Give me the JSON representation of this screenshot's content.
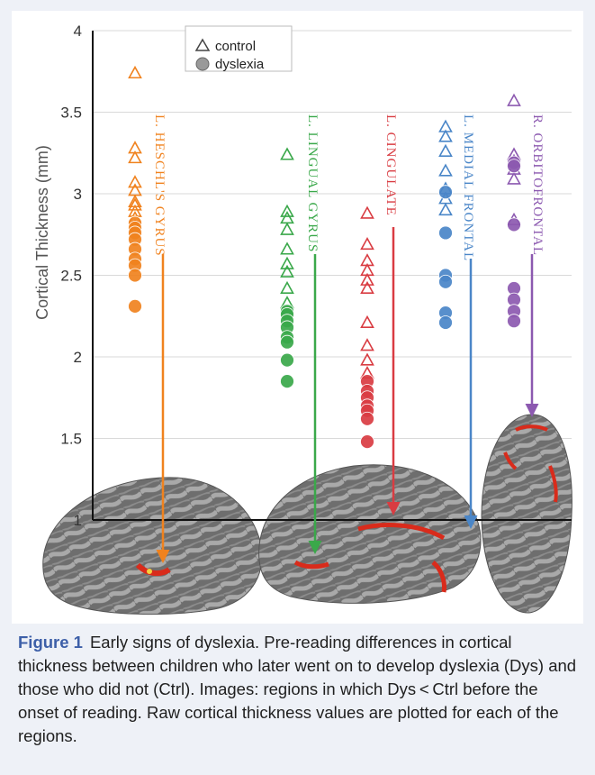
{
  "chart_data": {
    "type": "scatter",
    "ylabel": "Cortical Thickness (mm)",
    "ylim": [
      1,
      4
    ],
    "yticks": [
      "1",
      "1.5",
      "2",
      "2.5",
      "3",
      "3.5",
      "4"
    ],
    "legend": {
      "position": "top-left",
      "control_label": "control",
      "dyslexia_label": "dyslexia"
    },
    "regions": [
      {
        "name": "L. Heschl's gyrus",
        "label_text": "L. HESCHL'S GYRUS",
        "color": "#f0821e",
        "control": [
          3.74,
          3.28,
          3.22,
          3.07,
          3.02,
          2.95,
          2.93,
          2.89,
          2.85,
          2.8
        ],
        "dyslexia": [
          2.82,
          2.79,
          2.76,
          2.72,
          2.66,
          2.6,
          2.56,
          2.5,
          2.31
        ]
      },
      {
        "name": "L. Lingual gyrus",
        "label_text": "L. LINGUAL GYRUS",
        "color": "#3aa84a",
        "control": [
          3.24,
          2.89,
          2.85,
          2.78,
          2.66,
          2.57,
          2.52,
          2.42,
          2.33,
          2.22
        ],
        "dyslexia": [
          2.28,
          2.26,
          2.22,
          2.18,
          2.12,
          2.09,
          1.98,
          1.85
        ]
      },
      {
        "name": "L. Cingulate",
        "label_text": "L. CINGULATE",
        "color": "#d93c42",
        "control": [
          2.88,
          2.69,
          2.59,
          2.53,
          2.47,
          2.42,
          2.21,
          2.07,
          1.98,
          1.9
        ],
        "dyslexia": [
          1.85,
          1.79,
          1.75,
          1.7,
          1.67,
          1.62,
          1.48
        ]
      },
      {
        "name": "L. Medial frontal",
        "label_text": "L. MEDIAL FRONTAL",
        "color": "#4a86c8",
        "control": [
          3.41,
          3.35,
          3.26,
          3.14,
          3.03,
          2.97,
          2.9
        ],
        "dyslexia": [
          3.01,
          2.76,
          2.5,
          2.46,
          2.27,
          2.21
        ]
      },
      {
        "name": "R. Orbitofrontal",
        "label_text": "R. ORBITOFRONTAL",
        "color": "#8c59b0",
        "control": [
          3.57,
          3.24,
          3.2,
          3.15,
          3.09,
          2.84
        ],
        "dyslexia": [
          3.19,
          3.17,
          2.81,
          2.42,
          2.35,
          2.28,
          2.22
        ]
      }
    ]
  },
  "caption": {
    "label": "Figure 1",
    "text": "Early signs of dyslexia. Pre-reading differences in cortical thickness between children who later went on to develop dyslexia (Dys) and those who did not (Ctrl). Images: regions in which Dys < Ctrl before the onset of reading. Raw cortical thickness values are plotted for each of the regions."
  }
}
